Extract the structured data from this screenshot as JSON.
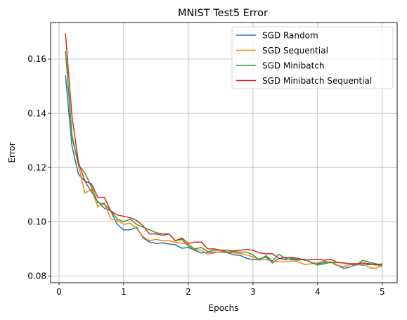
{
  "chart_data": {
    "type": "line",
    "title": "MNIST Test5 Error",
    "xlabel": "Epochs",
    "ylabel": "Error",
    "xlim": [
      -0.13,
      5.23
    ],
    "ylim": [
      0.0775,
      0.1735
    ],
    "xticks": [
      0,
      1,
      2,
      3,
      4,
      5
    ],
    "xtick_labels": [
      "0",
      "1",
      "2",
      "3",
      "4",
      "5"
    ],
    "yticks": [
      0.08,
      0.1,
      0.12,
      0.14,
      0.16
    ],
    "ytick_labels": [
      "0.08",
      "0.10",
      "0.12",
      "0.14",
      "0.16"
    ],
    "grid": true,
    "legend_position": "top-right",
    "x": [
      0.1,
      0.2,
      0.3,
      0.4,
      0.5,
      0.6,
      0.7,
      0.8,
      0.9,
      1.0,
      1.1,
      1.2,
      1.3,
      1.4,
      1.5,
      1.6,
      1.7,
      1.8,
      1.9,
      2.0,
      2.1,
      2.2,
      2.3,
      2.4,
      2.5,
      2.6,
      2.7,
      2.8,
      2.9,
      3.0,
      3.1,
      3.2,
      3.3,
      3.4,
      3.5,
      3.6,
      3.7,
      3.8,
      3.9,
      4.0,
      4.1,
      4.2,
      4.3,
      4.4,
      4.5,
      4.6,
      4.7,
      4.8,
      4.9,
      5.0
    ],
    "series": [
      {
        "name": "SGD Random",
        "color": "#1f77b4",
        "values": [
          0.154,
          0.128,
          0.1175,
          0.115,
          0.111,
          0.1075,
          0.105,
          0.104,
          0.099,
          0.097,
          0.097,
          0.098,
          0.094,
          0.0925,
          0.092,
          0.0922,
          0.0918,
          0.0915,
          0.0902,
          0.0905,
          0.0895,
          0.0885,
          0.0888,
          0.0888,
          0.0888,
          0.0886,
          0.0878,
          0.0876,
          0.0865,
          0.086,
          0.0862,
          0.087,
          0.0848,
          0.0865,
          0.086,
          0.0865,
          0.086,
          0.0862,
          0.085,
          0.0845,
          0.085,
          0.0852,
          0.084,
          0.0828,
          0.0833,
          0.0842,
          0.084,
          0.0842,
          0.0843,
          0.0835
        ]
      },
      {
        "name": "SGD Sequential",
        "color": "#ff7f0e",
        "values": [
          0.163,
          0.131,
          0.121,
          0.1105,
          0.112,
          0.1055,
          0.107,
          0.101,
          0.1005,
          0.099,
          0.0995,
          0.0975,
          0.0945,
          0.093,
          0.0935,
          0.093,
          0.093,
          0.0925,
          0.092,
          0.0918,
          0.0898,
          0.0895,
          0.088,
          0.0885,
          0.089,
          0.0888,
          0.0885,
          0.0883,
          0.0878,
          0.087,
          0.0862,
          0.086,
          0.0855,
          0.0852,
          0.0852,
          0.0855,
          0.0852,
          0.0842,
          0.0845,
          0.0848,
          0.0855,
          0.085,
          0.0838,
          0.0835,
          0.0842,
          0.084,
          0.0848,
          0.083,
          0.0828,
          0.0842
        ]
      },
      {
        "name": "SGD Minibatch",
        "color": "#2ca02c",
        "values": [
          0.163,
          0.132,
          0.121,
          0.118,
          0.113,
          0.107,
          0.1065,
          0.104,
          0.101,
          0.1,
          0.101,
          0.099,
          0.098,
          0.097,
          0.096,
          0.0955,
          0.0955,
          0.093,
          0.0935,
          0.091,
          0.09,
          0.0905,
          0.089,
          0.0895,
          0.0895,
          0.0888,
          0.089,
          0.0888,
          0.0888,
          0.0878,
          0.0858,
          0.0875,
          0.0855,
          0.088,
          0.0865,
          0.086,
          0.0858,
          0.0862,
          0.085,
          0.084,
          0.0845,
          0.085,
          0.085,
          0.0848,
          0.0845,
          0.084,
          0.0858,
          0.085,
          0.0845,
          0.084
        ]
      },
      {
        "name": "SGD Minibatch Sequential",
        "color": "#d62728",
        "values": [
          0.1695,
          0.139,
          0.122,
          0.115,
          0.114,
          0.109,
          0.109,
          0.104,
          0.1025,
          0.102,
          0.1015,
          0.1005,
          0.0985,
          0.0955,
          0.0955,
          0.095,
          0.0955,
          0.093,
          0.094,
          0.092,
          0.0925,
          0.0925,
          0.09,
          0.09,
          0.0895,
          0.0895,
          0.0892,
          0.0895,
          0.0898,
          0.0895,
          0.0885,
          0.0882,
          0.0882,
          0.0865,
          0.0868,
          0.0868,
          0.0865,
          0.0858,
          0.086,
          0.0862,
          0.0858,
          0.0862,
          0.085,
          0.0848,
          0.0845,
          0.0845,
          0.0848,
          0.0845,
          0.084,
          0.0845
        ]
      }
    ]
  }
}
